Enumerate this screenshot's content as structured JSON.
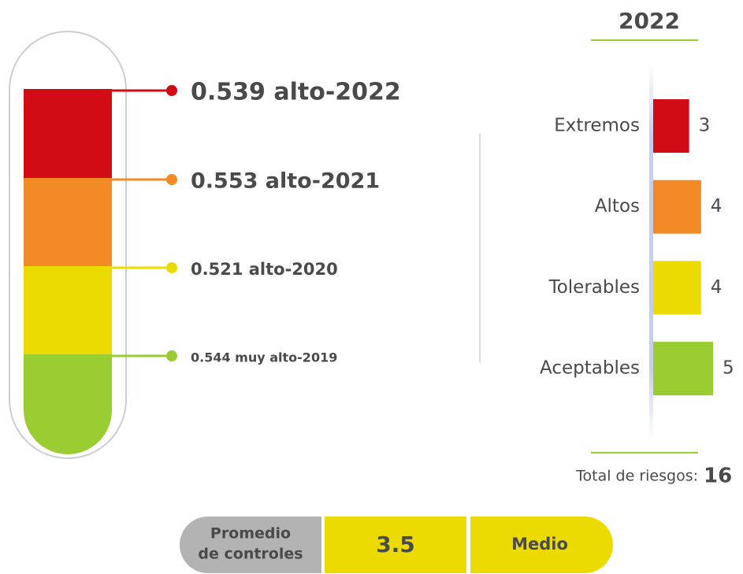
{
  "chart_data": {
    "type": "bar",
    "orientation": "horizontal",
    "title": "2022",
    "categories": [
      "Extremos",
      "Altos",
      "Tolerables",
      "Aceptables"
    ],
    "values": [
      3,
      4,
      4,
      5
    ],
    "colors": [
      "#d20c14",
      "#f28a25",
      "#ebdb00",
      "#9acd32"
    ]
  },
  "thermometer": {
    "colors": [
      "#d20c14",
      "#f28a25",
      "#ebdb00",
      "#9acd32"
    ],
    "labels": [
      "0.539 alto-2022",
      "0.553 alto-2021",
      "0.521 alto-2020",
      "0.544 muy alto-2019"
    ]
  },
  "total": {
    "label": "Total de riesgos:",
    "value": 16
  },
  "summary": {
    "label": [
      "Promedio",
      "de controles"
    ],
    "value": 3.5,
    "level": "Medio"
  }
}
